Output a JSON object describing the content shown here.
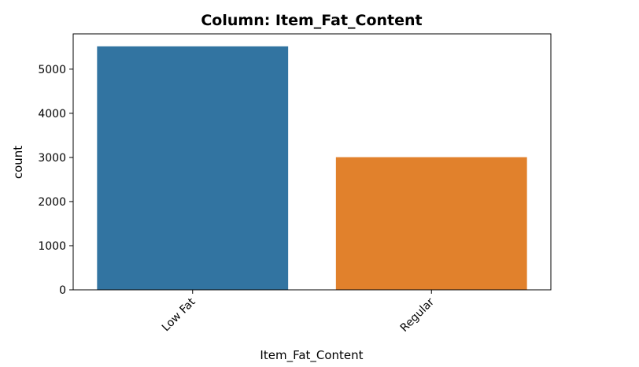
{
  "chart_data": {
    "type": "bar",
    "title": "Column: Item_Fat_Content",
    "xlabel": "Item_Fat_Content",
    "ylabel": "count",
    "categories": [
      "Low Fat",
      "Regular"
    ],
    "values": [
      5517,
      3006
    ],
    "colors": [
      "#3274a1",
      "#e1812c"
    ],
    "ylim": [
      0,
      5800
    ],
    "yticks": [
      0,
      1000,
      2000,
      3000,
      4000,
      5000
    ],
    "ytick_labels": [
      "0",
      "1000",
      "2000",
      "3000",
      "4000",
      "5000"
    ],
    "grid": false,
    "legend": "none",
    "xtick_rotation": 45
  }
}
